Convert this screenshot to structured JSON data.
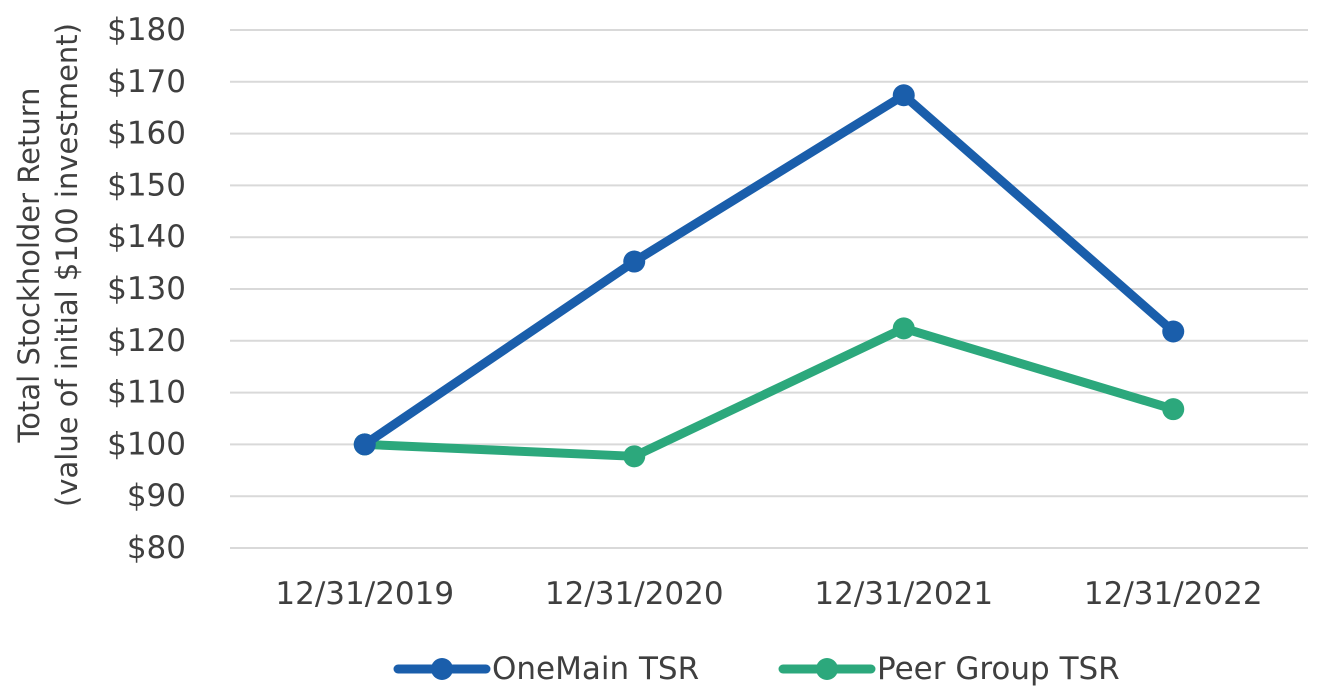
{
  "chart_data": {
    "type": "line",
    "title": "",
    "categories": [
      "12/31/2019",
      "12/31/2020",
      "12/31/2021",
      "12/31/2022"
    ],
    "series": [
      {
        "name": "OneMain TSR",
        "color": "#1a5eab",
        "values": [
          100,
          135.3,
          167.4,
          121.8
        ]
      },
      {
        "name": "Peer Group TSR",
        "color": "#2ca87c",
        "values": [
          100,
          97.7,
          122.4,
          106.8
        ]
      }
    ],
    "ylim": [
      80,
      180
    ],
    "ystep": 10,
    "ytick_labels": [
      "$80",
      "$90",
      "$100",
      "$110",
      "$120",
      "$130",
      "$140",
      "$150",
      "$160",
      "$170",
      "$180"
    ],
    "ylabel_line1": "Total Stockholder Return",
    "ylabel_line2": "(value of initial $100 investment)",
    "xlabel": "",
    "grid": true,
    "legend_position": "bottom"
  }
}
